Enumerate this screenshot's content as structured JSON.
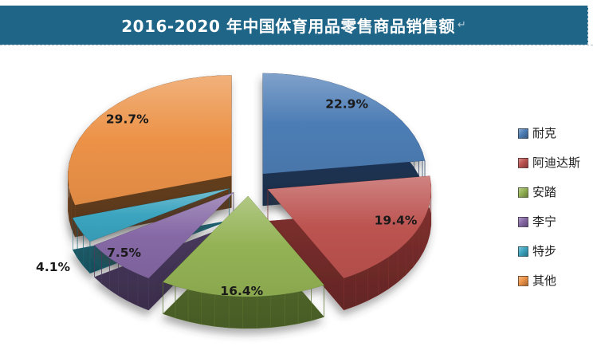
{
  "title": {
    "text": "2016-2020 年中国体育用品零售商品销售额",
    "paragraph_mark": "↵"
  },
  "theme": {
    "banner_bg": "#1e6588",
    "banner_text": "#ffffff",
    "page_bg": "#ffffff",
    "pct_label_color": "#1a1a1a",
    "legend_text_color": "#1f1f1f"
  },
  "chart_data": {
    "type": "pie",
    "style": "3d-exploded",
    "title": "2016-2020 年中国体育用品零售商品销售额",
    "unit": "percent",
    "direction": "clockwise",
    "start_angle_deg": 0,
    "legend_position": "right",
    "grid": false,
    "slices": [
      {
        "label": "耐克",
        "value": 22.9,
        "display": "22.9%",
        "color": "#4d7db5",
        "side_color": "#223a5e"
      },
      {
        "label": "阿迪达斯",
        "value": 19.4,
        "display": "19.4%",
        "color": "#bc5350",
        "side_color": "#7e302e"
      },
      {
        "label": "安踏",
        "value": 16.4,
        "display": "16.4%",
        "color": "#93b254",
        "side_color": "#5a7330"
      },
      {
        "label": "李宁",
        "value": 7.5,
        "display": "7.5%",
        "color": "#8568a5",
        "side_color": "#4a3a5f"
      },
      {
        "label": "特步",
        "value": 4.1,
        "display": "4.1%",
        "color": "#3ba4bf",
        "side_color": "#1f6676"
      },
      {
        "label": "其他",
        "value": 29.7,
        "display": "29.7%",
        "color": "#ec9247",
        "side_color": "#6f4523"
      }
    ]
  }
}
